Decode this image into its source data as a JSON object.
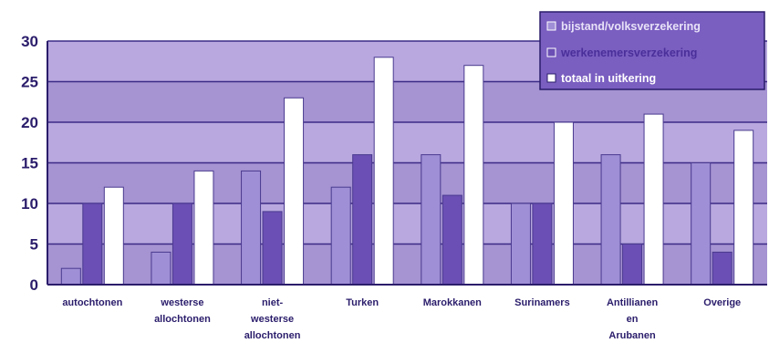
{
  "colors": {
    "plot_bg": "#a593d2",
    "plot_bg_light": "#b8a8df",
    "gridline": "#3c2b86",
    "series": [
      "#9f8fd6",
      "#6b4fb4",
      "#ffffff"
    ],
    "bar_stroke": "#4a3a8f",
    "legend_text": [
      "#4d3c9a",
      "#6b4fb4",
      "#ffffff"
    ],
    "legend_box": "#7a5ec0"
  },
  "chart_data": {
    "type": "bar",
    "categories": [
      [
        "autochtonen"
      ],
      [
        "westerse",
        "allochtonen"
      ],
      [
        "niet-",
        "westerse",
        "allochtonen"
      ],
      [
        "Turken"
      ],
      [
        "Marokkanen"
      ],
      [
        "Surinamers"
      ],
      [
        "Antillianen",
        "en",
        "Arubanen"
      ],
      [
        "Overige"
      ]
    ],
    "series": [
      {
        "name": "bijstand/volksverzekering",
        "values": [
          2,
          4,
          14,
          12,
          16,
          10,
          16,
          15
        ]
      },
      {
        "name": "werkenemersverzekering",
        "values": [
          10,
          10,
          9,
          16,
          11,
          10,
          5,
          4
        ]
      },
      {
        "name": "totaal in uitkering",
        "values": [
          12,
          14,
          23,
          28,
          27,
          20,
          21,
          19
        ]
      }
    ],
    "y_ticks": [
      "0",
      "5",
      "10",
      "15",
      "20",
      "25",
      "30"
    ],
    "ylim": [
      0,
      30
    ],
    "grid": true,
    "legend_position": "top-right"
  }
}
